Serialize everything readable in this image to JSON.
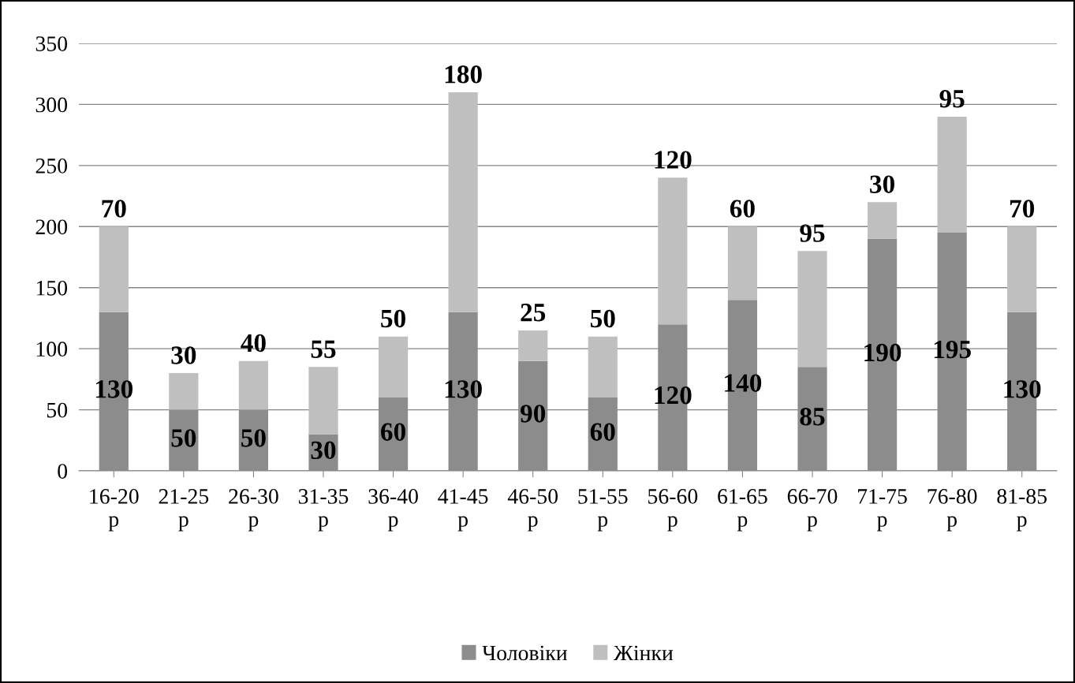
{
  "chart_data": {
    "type": "bar",
    "stacked": true,
    "categories": [
      "16-20\nр",
      "21-25\nр",
      "26-30\nр",
      "31-35\nр",
      "36-40\nр",
      "41-45\nр",
      "46-50\nр",
      "51-55\nр",
      "56-60\nр",
      "61-65\nр",
      "66-70\nр",
      "71-75\nр",
      "76-80\nр",
      "81-85\nр"
    ],
    "series": [
      {
        "name": "Чоловіки",
        "color": "#8c8c8c",
        "values": [
          130,
          50,
          50,
          30,
          60,
          130,
          90,
          60,
          120,
          140,
          85,
          190,
          195,
          130
        ]
      },
      {
        "name": "Жінки",
        "color": "#bfbfbf",
        "values": [
          70,
          30,
          40,
          55,
          50,
          180,
          25,
          50,
          120,
          60,
          95,
          30,
          95,
          70
        ]
      }
    ],
    "ylim": [
      0,
      350
    ],
    "yticks": [
      0,
      50,
      100,
      150,
      200,
      250,
      300,
      350
    ],
    "grid": "y",
    "legend": "bottom",
    "data_labels": true
  }
}
